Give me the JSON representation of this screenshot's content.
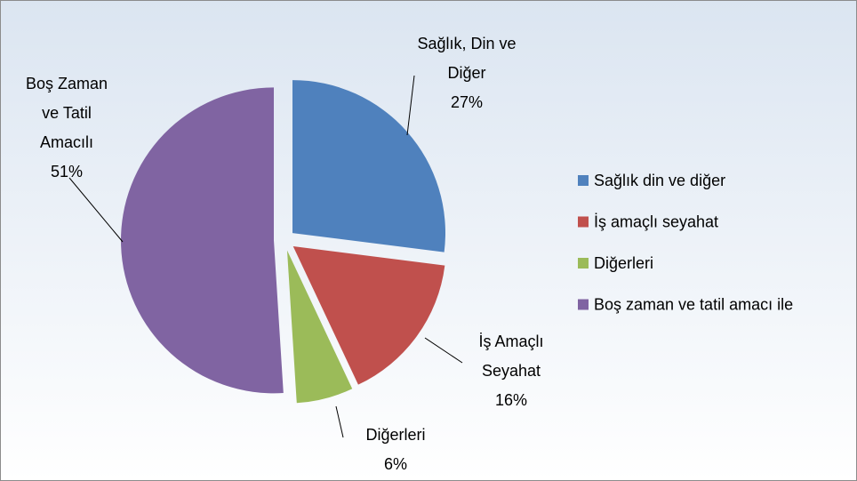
{
  "chart_data": {
    "type": "pie",
    "series": [
      {
        "name": "Sağlık din ve diğer",
        "color": "#4f81bd",
        "values": [
          27
        ]
      },
      {
        "name": "İş amaçlı seyahat",
        "color": "#c0504d",
        "values": [
          16
        ]
      },
      {
        "name": "Diğerleri",
        "color": "#9bbb59",
        "values": [
          6
        ]
      },
      {
        "name": "Boş zaman ve tatil amacı ile",
        "color": "#8064a2",
        "values": [
          51
        ]
      }
    ],
    "data_labels": [
      [
        "Sağlık, Din ve",
        "Diğer"
      ],
      [
        "İş Amaçlı",
        "Seyahat"
      ],
      [
        "Diğerleri"
      ],
      [
        "Boş Zaman",
        "ve Tatil",
        "Amacılı"
      ]
    ],
    "value_labels": [
      "27%",
      "16%",
      "6%",
      "51%"
    ],
    "legend": "right"
  }
}
